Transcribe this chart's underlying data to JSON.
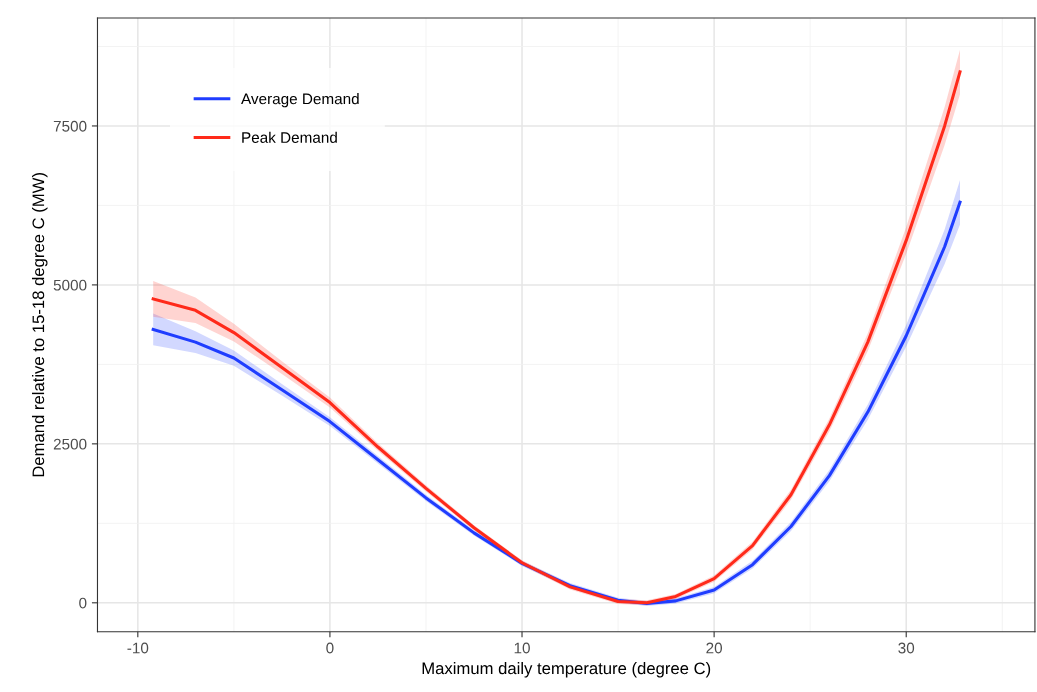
{
  "chart_data": {
    "type": "line",
    "xlabel": "Maximum daily temperature (degree C)",
    "ylabel": "Demand relative to 15-18 degree C (MW)",
    "xlim": [
      -12.1,
      36.7
    ],
    "ylim": [
      -456,
      9198
    ],
    "xticks": [
      -10,
      {
        "value": -5,
        "label": null
      },
      0,
      {
        "value": 5,
        "label": null
      },
      10,
      {
        "value": 15,
        "label": null
      },
      20,
      {
        "value": 25,
        "label": null
      },
      30,
      {
        "value": 35,
        "label": null
      }
    ],
    "yticks": [
      0,
      {
        "value": 1250,
        "label": null
      },
      2500,
      {
        "value": 3750,
        "label": null
      },
      5000,
      {
        "value": 6250,
        "label": null
      },
      7500,
      {
        "value": 8750,
        "label": null
      }
    ],
    "grid": true,
    "legend": "top left",
    "line_style": "solid",
    "x": [
      -9.2,
      -7,
      -5,
      -2.5,
      0,
      2.5,
      5,
      7.5,
      10,
      12.5,
      15,
      16.5,
      18,
      20,
      22,
      24,
      26,
      28,
      30,
      32,
      32.8
    ],
    "series": [
      {
        "name": "Average Demand",
        "color": "#1f3dff",
        "values": [
          4300,
          4100,
          3850,
          3350,
          2850,
          2250,
          1650,
          1100,
          620,
          270,
          40,
          -10,
          30,
          200,
          600,
          1200,
          2000,
          3000,
          4200,
          5600,
          6300
        ],
        "lower": [
          4050,
          3930,
          3730,
          3260,
          2780,
          2190,
          1600,
          1060,
          580,
          230,
          0,
          -50,
          -10,
          150,
          540,
          1130,
          1910,
          2880,
          4030,
          5330,
          5950
        ],
        "upper": [
          4550,
          4270,
          3970,
          3440,
          2920,
          2310,
          1700,
          1140,
          660,
          310,
          80,
          30,
          70,
          250,
          660,
          1270,
          2090,
          3120,
          4370,
          5870,
          6650
        ]
      },
      {
        "name": "Peak Demand",
        "color": "#ff2a1a",
        "values": [
          4780,
          4600,
          4250,
          3700,
          3150,
          2450,
          1800,
          1180,
          630,
          250,
          20,
          0,
          100,
          380,
          900,
          1700,
          2800,
          4100,
          5700,
          7500,
          8350
        ],
        "lower": [
          4500,
          4400,
          4110,
          3600,
          3070,
          2390,
          1750,
          1140,
          590,
          210,
          -20,
          -40,
          60,
          330,
          840,
          1620,
          2700,
          3960,
          5490,
          7200,
          8000
        ],
        "upper": [
          5060,
          4800,
          4390,
          3800,
          3230,
          2510,
          1850,
          1220,
          670,
          290,
          60,
          40,
          140,
          430,
          960,
          1780,
          2900,
          4240,
          5910,
          7800,
          8700
        ]
      }
    ]
  }
}
